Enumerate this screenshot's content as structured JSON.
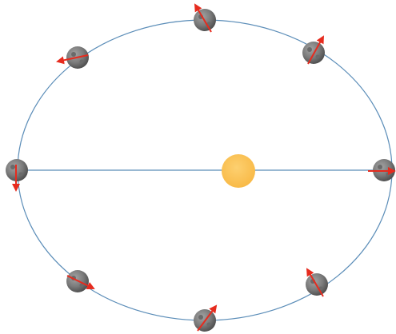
{
  "diagram": {
    "type": "elliptical-orbit",
    "orbit": {
      "shape": "ellipse",
      "color": "#5b8db8"
    },
    "major_axis": {
      "visible": true,
      "color": "#5b8db8"
    },
    "star": {
      "icon": "sun-icon",
      "color": "#fcc04e"
    },
    "planet": {
      "icon": "rocky-planet-icon",
      "color": "#808080",
      "count": 8
    },
    "arrows": {
      "icon": "arrow-icon",
      "color": "#e62b1e",
      "count": 8
    }
  }
}
